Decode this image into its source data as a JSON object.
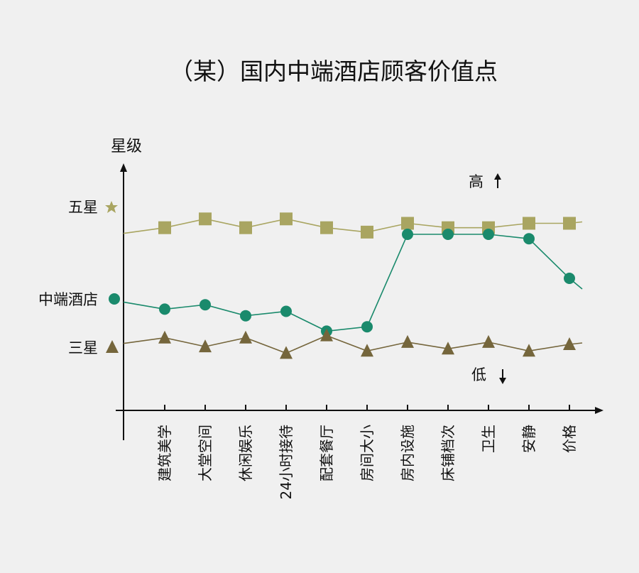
{
  "chart_data": {
    "type": "line",
    "title": "（某）国内中端酒店顾客价值点",
    "ylabel": "星级",
    "y_levels": [
      "五星",
      "中端酒店",
      "三星"
    ],
    "annotations": {
      "high": "高",
      "low": "低"
    },
    "categories": [
      "建筑美学",
      "大堂空间",
      "休闲娱乐",
      "24小时接待",
      "配套餐厅",
      "房间大小",
      "房内设施",
      "床铺档次",
      "卫生",
      "安静",
      "价格"
    ],
    "ylim": [
      0,
      10
    ],
    "series": [
      {
        "name": "五星",
        "color": "#a9a561",
        "marker": "square",
        "values": [
          8.3,
          8.7,
          8.3,
          8.7,
          8.3,
          8.1,
          8.5,
          8.3,
          8.3,
          8.5,
          8.5
        ]
      },
      {
        "name": "中端酒店",
        "color": "#1a8a6c",
        "marker": "circle",
        "values": [
          4.6,
          4.8,
          4.3,
          4.5,
          3.6,
          3.8,
          8.0,
          8.0,
          8.0,
          7.8,
          6.0
        ]
      },
      {
        "name": "三星",
        "color": "#75663c",
        "marker": "triangle",
        "values": [
          3.3,
          2.9,
          3.3,
          2.6,
          3.4,
          2.7,
          3.1,
          2.8,
          3.1,
          2.7,
          3.0
        ]
      }
    ]
  }
}
